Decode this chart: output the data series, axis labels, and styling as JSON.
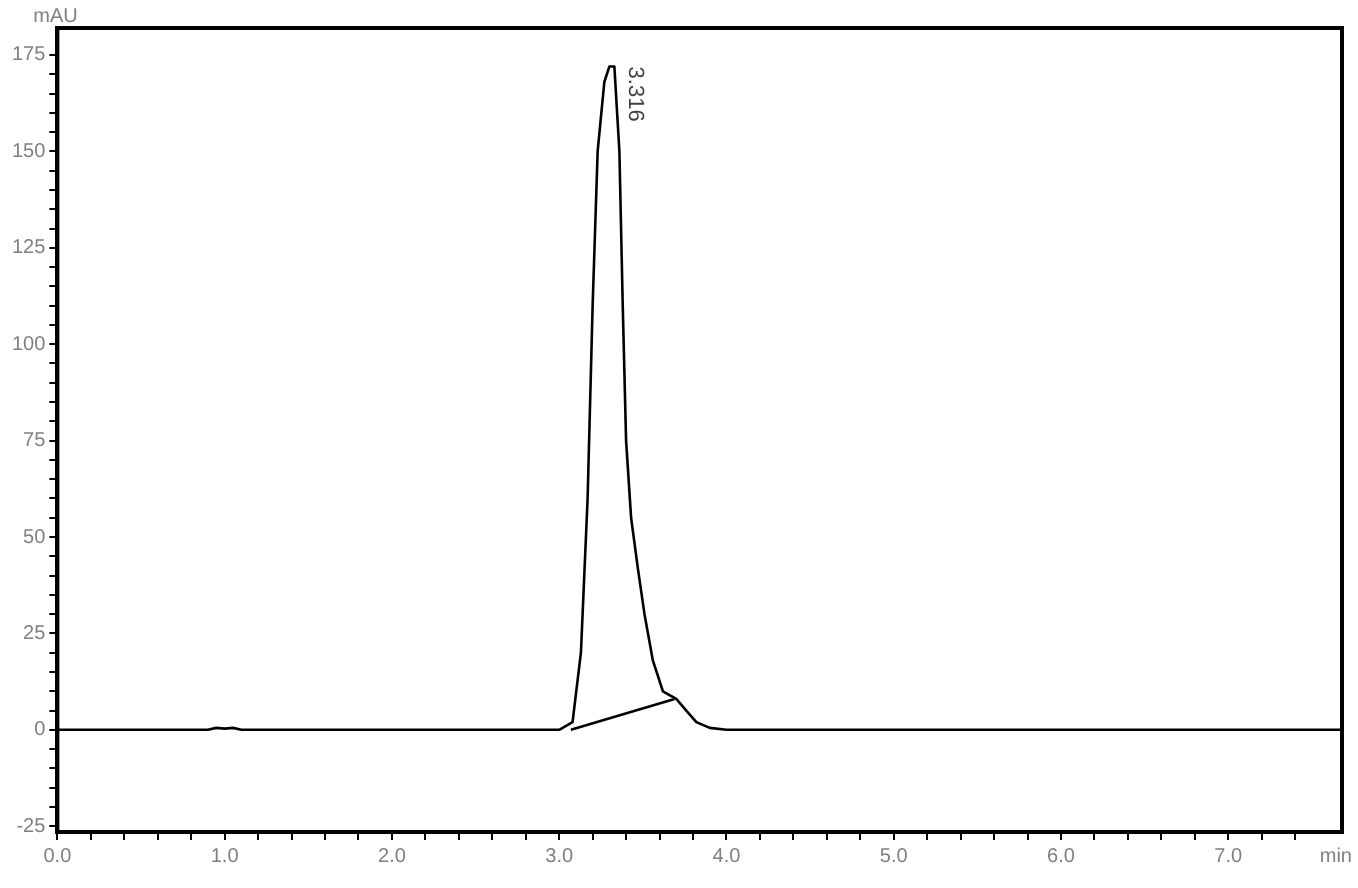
{
  "chart_data": {
    "type": "line",
    "xlabel": "min",
    "ylabel": "mAU",
    "xlim": [
      0,
      7.68
    ],
    "ylim": [
      -26.5,
      182
    ],
    "xticks": [
      {
        "value": 0,
        "label": "0.0"
      },
      {
        "value": 0.2,
        "label": null
      },
      {
        "value": 0.4,
        "label": null
      },
      {
        "value": 0.6,
        "label": null
      },
      {
        "value": 0.8,
        "label": null
      },
      {
        "value": 1,
        "label": "1.0"
      },
      {
        "value": 1.2,
        "label": null
      },
      {
        "value": 1.4,
        "label": null
      },
      {
        "value": 1.6,
        "label": null
      },
      {
        "value": 1.8,
        "label": null
      },
      {
        "value": 2,
        "label": "2.0"
      },
      {
        "value": 2.2,
        "label": null
      },
      {
        "value": 2.4,
        "label": null
      },
      {
        "value": 2.6,
        "label": null
      },
      {
        "value": 2.8,
        "label": null
      },
      {
        "value": 3,
        "label": "3.0"
      },
      {
        "value": 3.2,
        "label": null
      },
      {
        "value": 3.4,
        "label": null
      },
      {
        "value": 3.6,
        "label": null
      },
      {
        "value": 3.8,
        "label": null
      },
      {
        "value": 4,
        "label": "4.0"
      },
      {
        "value": 4.2,
        "label": null
      },
      {
        "value": 4.4,
        "label": null
      },
      {
        "value": 4.6,
        "label": null
      },
      {
        "value": 4.8,
        "label": null
      },
      {
        "value": 5,
        "label": "5.0"
      },
      {
        "value": 5.2,
        "label": null
      },
      {
        "value": 5.4,
        "label": null
      },
      {
        "value": 5.6,
        "label": null
      },
      {
        "value": 5.8,
        "label": null
      },
      {
        "value": 6,
        "label": "6.0"
      },
      {
        "value": 6.2,
        "label": null
      },
      {
        "value": 6.4,
        "label": null
      },
      {
        "value": 6.6,
        "label": null
      },
      {
        "value": 6.8,
        "label": null
      },
      {
        "value": 7,
        "label": "7.0"
      },
      {
        "value": 7.2,
        "label": null
      },
      {
        "value": 7.4,
        "label": null
      }
    ],
    "yticks": [
      -25,
      {
        "value": -20,
        "label": null
      },
      {
        "value": -15,
        "label": null
      },
      {
        "value": -10,
        "label": null
      },
      {
        "value": -5,
        "label": null
      },
      0,
      {
        "value": 5,
        "label": null
      },
      {
        "value": 10,
        "label": null
      },
      {
        "value": 15,
        "label": null
      },
      {
        "value": 20,
        "label": null
      },
      25,
      {
        "value": 30,
        "label": null
      },
      {
        "value": 35,
        "label": null
      },
      {
        "value": 40,
        "label": null
      },
      {
        "value": 45,
        "label": null
      },
      50,
      {
        "value": 55,
        "label": null
      },
      {
        "value": 60,
        "label": null
      },
      {
        "value": 65,
        "label": null
      },
      {
        "value": 70,
        "label": null
      },
      75,
      {
        "value": 80,
        "label": null
      },
      {
        "value": 85,
        "label": null
      },
      {
        "value": 90,
        "label": null
      },
      {
        "value": 95,
        "label": null
      },
      100,
      {
        "value": 105,
        "label": null
      },
      {
        "value": 110,
        "label": null
      },
      {
        "value": 115,
        "label": null
      },
      {
        "value": 120,
        "label": null
      },
      125,
      {
        "value": 130,
        "label": null
      },
      {
        "value": 135,
        "label": null
      },
      {
        "value": 140,
        "label": null
      },
      {
        "value": 145,
        "label": null
      },
      150,
      {
        "value": 155,
        "label": null
      },
      {
        "value": 160,
        "label": null
      },
      {
        "value": 165,
        "label": null
      },
      {
        "value": 170,
        "label": null
      },
      175
    ],
    "series": [
      {
        "color": "#000000",
        "x": [
          0,
          0.9,
          0.95,
          1.0,
          1.05,
          1.1,
          2.0,
          3.0,
          3.08,
          3.13,
          3.17,
          3.2,
          3.23,
          3.27,
          3.3,
          3.33,
          3.36,
          3.38,
          3.4,
          3.43,
          3.47,
          3.51,
          3.56,
          3.62,
          3.7,
          3.76,
          3.82,
          3.9,
          4.0,
          5.0,
          6.0,
          7.0,
          7.68
        ],
        "values": [
          0,
          0,
          0.5,
          0.3,
          0.5,
          0,
          0,
          0,
          2,
          20,
          60,
          110,
          150,
          168,
          172,
          172,
          150,
          110,
          75,
          55,
          42,
          30,
          18,
          10,
          8,
          5,
          2,
          0.5,
          0,
          0,
          0,
          0,
          0
        ]
      },
      {
        "color": "#000000",
        "x": [
          3.07,
          3.69
        ],
        "values": [
          0,
          8
        ]
      }
    ],
    "annotations": [
      {
        "text": "3.316",
        "x": 3.33,
        "y": 172
      }
    ],
    "grid": false,
    "legend": false,
    "marker": "none",
    "line_style": "solid"
  }
}
